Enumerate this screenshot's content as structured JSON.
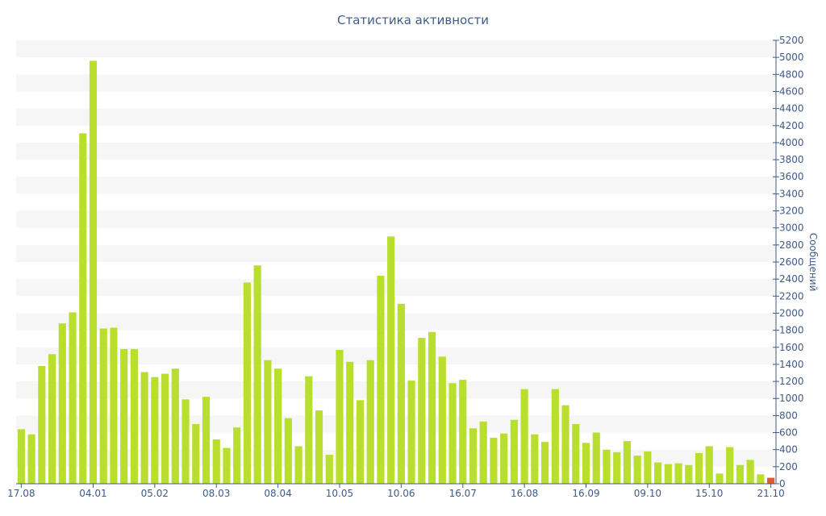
{
  "chart_data": {
    "type": "bar",
    "title": "Статистика активности",
    "ylabel": "Сообщений",
    "ylim": [
      0,
      5200
    ],
    "ytick_step": 200,
    "x_tick_labels": [
      "17.08",
      "04.01",
      "05.02",
      "08.03",
      "08.04",
      "10.05",
      "10.06",
      "16.07",
      "16.08",
      "16.09",
      "09.10",
      "15.10",
      "21.10"
    ],
    "x_tick_bar_index": [
      0,
      7,
      13,
      19,
      25,
      31,
      37,
      43,
      49,
      55,
      61,
      67,
      73
    ],
    "values": [
      640,
      580,
      1380,
      1520,
      1880,
      2010,
      4110,
      4960,
      1820,
      1830,
      1580,
      1580,
      1310,
      1250,
      1290,
      1350,
      990,
      700,
      1020,
      520,
      420,
      660,
      2360,
      2560,
      1450,
      1350,
      770,
      440,
      1260,
      860,
      340,
      1570,
      1430,
      980,
      1450,
      2440,
      2900,
      2110,
      1210,
      1710,
      1780,
      1490,
      1180,
      1220,
      650,
      730,
      540,
      590,
      750,
      1110,
      580,
      490,
      1110,
      920,
      700,
      480,
      600,
      400,
      370,
      500,
      330,
      380,
      250,
      230,
      240,
      220,
      360,
      440,
      120,
      430,
      220,
      280,
      110,
      70
    ],
    "bar_color": "#b8df2e",
    "highlight_color": "#e5582a",
    "highlight_index": 73,
    "band_color": "#f6f6f6",
    "axis_color": "#3f5a8a"
  }
}
